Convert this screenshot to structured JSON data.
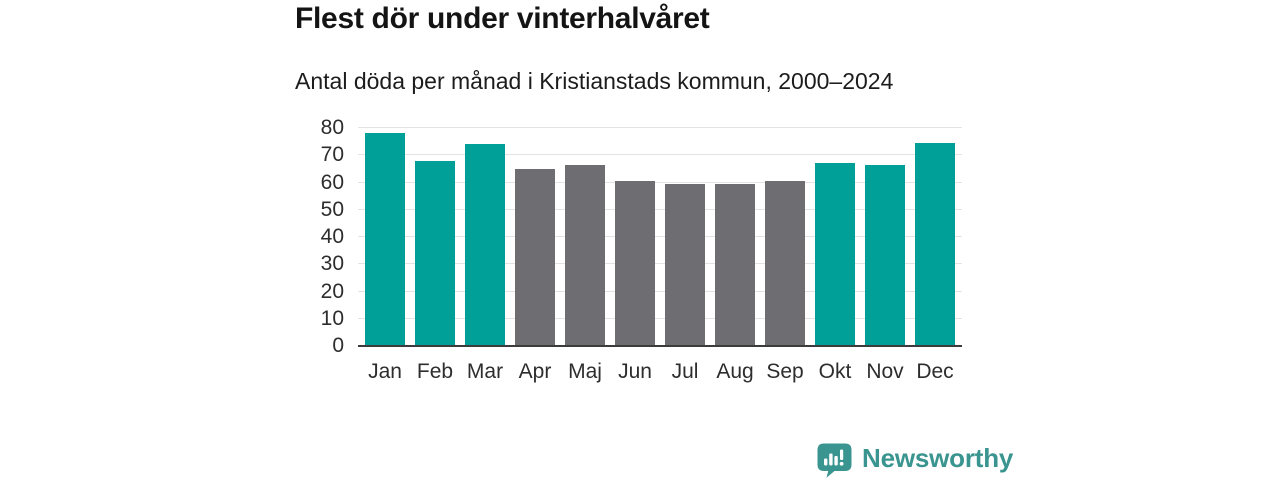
{
  "header": {
    "title": "Flest dör under vinterhalvåret",
    "subtitle": "Antal döda per månad i Kristianstads kommun, 2000–2024"
  },
  "chart_data": {
    "type": "bar",
    "title": "Flest dör under vinterhalvåret",
    "subtitle": "Antal döda per månad i Kristianstads kommun, 2000–2024",
    "categories": [
      "Jan",
      "Feb",
      "Mar",
      "Apr",
      "Maj",
      "Jun",
      "Jul",
      "Aug",
      "Sep",
      "Okt",
      "Nov",
      "Dec"
    ],
    "values": [
      78,
      68,
      74,
      65,
      66.5,
      60.5,
      59.5,
      59.5,
      60.5,
      67,
      66.5,
      74.5
    ],
    "bar_colors": [
      "#00a099",
      "#00a099",
      "#00a099",
      "#6d6d72",
      "#6d6d72",
      "#6d6d72",
      "#6d6d72",
      "#6d6d72",
      "#6d6d72",
      "#00a099",
      "#00a099",
      "#00a099"
    ],
    "xlabel": "",
    "ylabel": "",
    "ylim": [
      0,
      80
    ],
    "yticks": [
      0,
      10,
      20,
      30,
      40,
      50,
      60,
      70,
      80
    ],
    "grid": true,
    "legend_position": "none"
  },
  "colors": {
    "winter_bar": "#00a099",
    "summer_bar": "#6d6d72",
    "gridline": "#e3e3e3",
    "axis_line": "#3c3c3c",
    "tick_text": "#2d2d2d",
    "title_text": "#141414",
    "logo_teal": "#3a948f"
  },
  "footer": {
    "brand": "Newsworthy"
  }
}
